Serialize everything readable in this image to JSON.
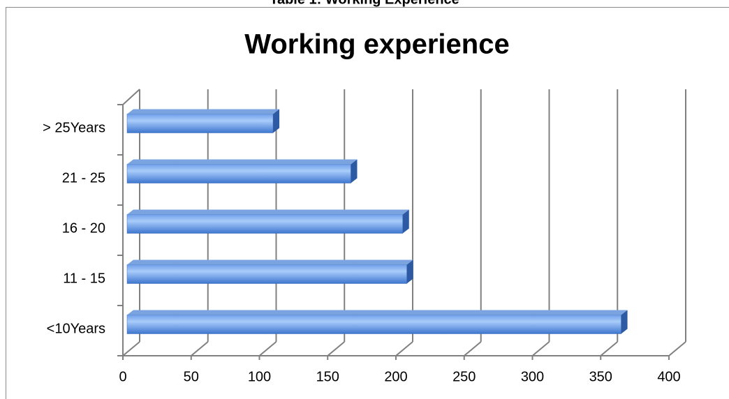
{
  "caption": "Table 1: Working Experience",
  "chart_data": {
    "type": "bar3d_horizontal",
    "title": "Working experience",
    "categories": [
      "<10Years",
      "11 - 15",
      "16 - 20",
      "21 - 25",
      "> 25Years"
    ],
    "values": [
      365,
      208,
      205,
      167,
      110
    ],
    "color": "#4f86d8",
    "xlim": [
      0,
      400
    ],
    "xticks": [
      0,
      50,
      100,
      150,
      200,
      250,
      300,
      350,
      400
    ],
    "grid": true
  }
}
